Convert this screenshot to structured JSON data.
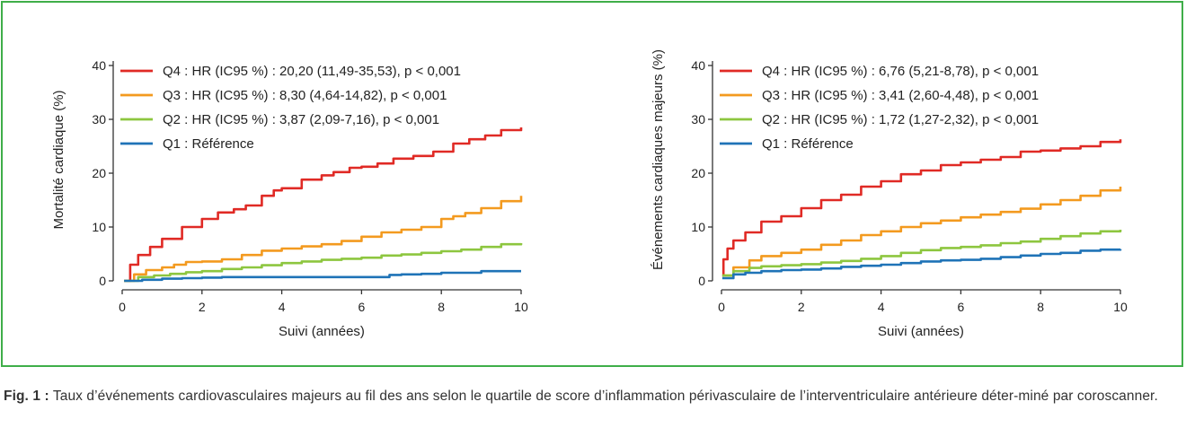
{
  "colors": {
    "frame": "#3fae49",
    "Q4": "#e02a25",
    "Q3": "#f39a1f",
    "Q2": "#8dc63f",
    "Q1": "#1f73b7"
  },
  "caption": {
    "label": "Fig. 1 :",
    "text": " Taux d’événements cardiovasculaires majeurs au fil des ans selon le quartile de score d’inflammation périvasculaire de l’interventriculaire antérieure déter-miné par coroscanner."
  },
  "chart_data": [
    {
      "type": "line",
      "title": "",
      "xlabel": "Suivi (années)",
      "ylabel": "Mortalité cardiaque (%)",
      "xlim": [
        0,
        10
      ],
      "ylim": [
        0,
        40
      ],
      "xticks": [
        0,
        2,
        4,
        6,
        8,
        10
      ],
      "yticks": [
        0,
        10,
        20,
        30,
        40
      ],
      "grid": false,
      "legend": "top-left",
      "series": [
        {
          "name": "Q4 : HR (IC95 %) : 20,20 (11,49-35,53), p < 0,001",
          "color": "#e02a25",
          "x": [
            0.05,
            0.2,
            0.4,
            0.7,
            1,
            1.5,
            2,
            2.4,
            2.8,
            3.1,
            3.5,
            3.8,
            4,
            4.5,
            5,
            5.3,
            5.7,
            6,
            6.4,
            6.8,
            7.3,
            7.8,
            8.3,
            8.7,
            9.1,
            9.5,
            10
          ],
          "y": [
            0,
            3,
            4.8,
            6.3,
            7.8,
            10,
            11.5,
            12.7,
            13.3,
            14,
            15.8,
            16.8,
            17.2,
            18.8,
            19.6,
            20.2,
            21,
            21.2,
            21.8,
            22.7,
            23.2,
            24,
            25.5,
            26.3,
            27,
            28,
            28.5
          ]
        },
        {
          "name": "Q3 : HR (IC95 %) : 8,30 (4,64-14,82), p < 0,001",
          "color": "#f39a1f",
          "x": [
            0.05,
            0.3,
            0.6,
            1,
            1.3,
            1.6,
            2,
            2.5,
            3,
            3.5,
            4,
            4.5,
            5,
            5.5,
            6,
            6.5,
            7,
            7.5,
            8,
            8.3,
            8.6,
            9,
            9.5,
            10
          ],
          "y": [
            0,
            1.2,
            2,
            2.5,
            3,
            3.5,
            3.6,
            4,
            4.8,
            5.6,
            6,
            6.4,
            6.8,
            7.4,
            8.2,
            9,
            9.5,
            10,
            11.5,
            12,
            12.6,
            13.5,
            14.8,
            15.8
          ]
        },
        {
          "name": "Q2 : HR (IC95 %) : 3,87 (2,09-7,16), p < 0,001",
          "color": "#8dc63f",
          "x": [
            0.05,
            0.4,
            0.8,
            1.2,
            1.6,
            2,
            2.5,
            3,
            3.5,
            4,
            4.5,
            5,
            5.5,
            6,
            6.5,
            7,
            7.5,
            8,
            8.5,
            9,
            9.5,
            10
          ],
          "y": [
            0,
            0.7,
            1,
            1.3,
            1.6,
            1.8,
            2.2,
            2.5,
            2.9,
            3.3,
            3.6,
            3.9,
            4.1,
            4.3,
            4.7,
            4.9,
            5.2,
            5.5,
            5.8,
            6.3,
            6.8,
            7
          ]
        },
        {
          "name": "Q1 : Référence",
          "color": "#1f73b7",
          "x": [
            0.05,
            0.5,
            1,
            1.5,
            2,
            2.5,
            3,
            4,
            5,
            6,
            6.7,
            7,
            7.5,
            8,
            8.5,
            9,
            9.5,
            10
          ],
          "y": [
            0,
            0.2,
            0.4,
            0.5,
            0.6,
            0.7,
            0.7,
            0.7,
            0.7,
            0.7,
            1.1,
            1.2,
            1.3,
            1.5,
            1.5,
            1.8,
            1.8,
            1.8
          ]
        }
      ]
    },
    {
      "type": "line",
      "title": "",
      "xlabel": "Suivi (années)",
      "ylabel": "Événements cardiaques majeurs (%)",
      "xlim": [
        0,
        10
      ],
      "ylim": [
        0,
        40
      ],
      "xticks": [
        0,
        2,
        4,
        6,
        8,
        10
      ],
      "yticks": [
        0,
        10,
        20,
        30,
        40
      ],
      "grid": false,
      "legend": "top-left",
      "series": [
        {
          "name": "Q4 : HR (IC95 %) : 6,76 (5,21-8,78), p < 0,001",
          "color": "#e02a25",
          "x": [
            0.02,
            0.05,
            0.15,
            0.3,
            0.6,
            1,
            1.5,
            2,
            2.5,
            3,
            3.5,
            4,
            4.5,
            5,
            5.5,
            6,
            6.5,
            7,
            7.5,
            8,
            8.5,
            9,
            9.5,
            10
          ],
          "y": [
            1,
            4,
            6,
            7.5,
            9,
            11,
            12,
            13.5,
            15,
            16,
            17.5,
            18.5,
            19.8,
            20.5,
            21.5,
            22,
            22.5,
            23,
            24,
            24.2,
            24.6,
            25,
            25.8,
            26.3
          ]
        },
        {
          "name": "Q3 : HR (IC95 %) : 3,41 (2,60-4,48), p < 0,001",
          "color": "#f39a1f",
          "x": [
            0.02,
            0.3,
            0.7,
            1,
            1.5,
            2,
            2.5,
            3,
            3.5,
            4,
            4.5,
            5,
            5.5,
            6,
            6.5,
            7,
            7.5,
            8,
            8.5,
            9,
            9.5,
            10
          ],
          "y": [
            1,
            2.5,
            3.8,
            4.6,
            5.2,
            5.8,
            6.7,
            7.5,
            8.5,
            9.2,
            10,
            10.7,
            11.2,
            11.8,
            12.3,
            12.8,
            13.4,
            14.2,
            15,
            15.8,
            16.8,
            17.5
          ]
        },
        {
          "name": "Q2 : HR (IC95 %) : 1,72 (1,27-2,32), p < 0,001",
          "color": "#8dc63f",
          "x": [
            0.02,
            0.3,
            0.7,
            1,
            1.5,
            2,
            2.5,
            3,
            3.5,
            4,
            4.5,
            5,
            5.5,
            6,
            6.5,
            7,
            7.5,
            8,
            8.5,
            9,
            9.5,
            10
          ],
          "y": [
            1,
            1.8,
            2.4,
            2.7,
            2.9,
            3.1,
            3.4,
            3.7,
            4.1,
            4.6,
            5.2,
            5.7,
            6.1,
            6.3,
            6.6,
            7,
            7.3,
            7.8,
            8.3,
            8.8,
            9.2,
            9.5
          ]
        },
        {
          "name": "Q1 : Référence",
          "color": "#1f73b7",
          "x": [
            0.02,
            0.3,
            0.6,
            1,
            1.5,
            2,
            2.5,
            3,
            3.5,
            4,
            4.5,
            5,
            5.5,
            6,
            6.5,
            7,
            7.5,
            8,
            8.5,
            9,
            9.5,
            10
          ],
          "y": [
            0.5,
            1.2,
            1.5,
            1.8,
            2,
            2.1,
            2.3,
            2.6,
            2.8,
            3,
            3.3,
            3.6,
            3.8,
            3.9,
            4.1,
            4.4,
            4.7,
            5,
            5.2,
            5.6,
            5.8,
            5.9
          ]
        }
      ]
    }
  ]
}
